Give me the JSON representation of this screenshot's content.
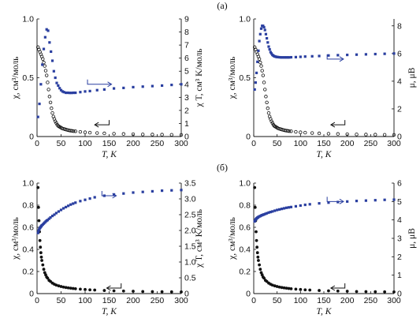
{
  "panel_labels": [
    "(а)",
    "(б)"
  ],
  "chart_data": [
    {
      "type": "scatter",
      "row": "а",
      "xlabel": "T, K",
      "ylabel_left": "χ, см³/моль",
      "ylabel_right": "χ T, см³ K/моль",
      "xlim": [
        0,
        300
      ],
      "ylim_left": [
        0,
        1.0
      ],
      "ylim_right": [
        0,
        9
      ],
      "x_ticks": [
        "0",
        "50",
        "100",
        "150",
        "200",
        "250",
        "300"
      ],
      "y_left_ticks": [
        "0",
        "0.5",
        "1.0"
      ],
      "y_right_ticks": [
        "0",
        "1",
        "2",
        "3",
        "4",
        "5",
        "6",
        "7",
        "8",
        "9"
      ],
      "colors": {
        "open": "#111111",
        "blue": "#2a3fa0"
      },
      "series": [
        {
          "axis": "left",
          "marker": "open-circle",
          "arrow": "left",
          "x": [
            2,
            4,
            6,
            8,
            10,
            12,
            14,
            16,
            18,
            20,
            22,
            24,
            26,
            28,
            30,
            32,
            34,
            36,
            38,
            40,
            42,
            44,
            46,
            48,
            50,
            52,
            55,
            58,
            61,
            64,
            67,
            70,
            73,
            76,
            80,
            90,
            100,
            110,
            125,
            140,
            160,
            180,
            200,
            220,
            240,
            260,
            280,
            300
          ],
          "y": [
            0.76,
            0.74,
            0.72,
            0.7,
            0.68,
            0.66,
            0.63,
            0.6,
            0.56,
            0.52,
            0.46,
            0.4,
            0.34,
            0.29,
            0.24,
            0.2,
            0.17,
            0.15,
            0.13,
            0.115,
            0.1,
            0.09,
            0.085,
            0.08,
            0.075,
            0.07,
            0.066,
            0.062,
            0.058,
            0.055,
            0.052,
            0.05,
            0.048,
            0.046,
            0.045,
            0.04,
            0.036,
            0.033,
            0.03,
            0.027,
            0.024,
            0.022,
            0.02,
            0.018,
            0.017,
            0.016,
            0.015,
            0.014
          ]
        },
        {
          "axis": "right",
          "marker": "filled-square",
          "arrow": "right",
          "x": [
            2,
            5,
            8,
            11,
            14,
            17,
            20,
            23,
            26,
            29,
            32,
            35,
            38,
            41,
            44,
            47,
            50,
            53,
            56,
            60,
            64,
            68,
            72,
            76,
            80,
            90,
            100,
            110,
            125,
            140,
            160,
            180,
            200,
            220,
            240,
            260,
            280,
            300
          ],
          "y": [
            1.5,
            2.5,
            4.0,
            5.5,
            6.7,
            7.6,
            8.2,
            8.1,
            7.2,
            6.5,
            5.8,
            5.0,
            4.5,
            4.1,
            3.9,
            3.7,
            3.55,
            3.45,
            3.4,
            3.35,
            3.35,
            3.34,
            3.34,
            3.35,
            3.35,
            3.4,
            3.45,
            3.48,
            3.55,
            3.6,
            3.68,
            3.72,
            3.78,
            3.82,
            3.86,
            3.9,
            3.95,
            4.0
          ]
        }
      ]
    },
    {
      "type": "scatter",
      "row": "а",
      "xlabel": "T, K",
      "ylabel_left": "χ, см³/моль",
      "ylabel_right": "μ, μB",
      "xlim": [
        0,
        300
      ],
      "ylim_left": [
        0,
        1.0
      ],
      "ylim_right": [
        0,
        8.5
      ],
      "x_ticks": [
        "0",
        "50",
        "100",
        "150",
        "200",
        "250",
        "300"
      ],
      "y_left_ticks": [
        "0",
        "0.5",
        "1.0"
      ],
      "y_right_ticks": [
        "0",
        "2",
        "4",
        "6",
        "8"
      ],
      "colors": {
        "open": "#111111",
        "blue": "#2a3fa0"
      },
      "series": [
        {
          "axis": "left",
          "marker": "open-circle",
          "arrow": "left",
          "x": [
            2,
            4,
            6,
            8,
            10,
            12,
            14,
            16,
            18,
            20,
            22,
            24,
            26,
            28,
            30,
            32,
            34,
            36,
            38,
            40,
            42,
            44,
            46,
            48,
            50,
            52,
            55,
            58,
            61,
            64,
            67,
            70,
            73,
            76,
            80,
            90,
            100,
            110,
            125,
            140,
            160,
            180,
            200,
            220,
            240,
            260,
            280,
            300
          ],
          "y": [
            0.76,
            0.74,
            0.72,
            0.7,
            0.68,
            0.66,
            0.63,
            0.6,
            0.56,
            0.52,
            0.46,
            0.4,
            0.34,
            0.29,
            0.24,
            0.2,
            0.17,
            0.15,
            0.13,
            0.115,
            0.1,
            0.09,
            0.085,
            0.08,
            0.075,
            0.07,
            0.066,
            0.062,
            0.058,
            0.055,
            0.052,
            0.05,
            0.048,
            0.046,
            0.045,
            0.04,
            0.036,
            0.033,
            0.03,
            0.027,
            0.024,
            0.022,
            0.02,
            0.018,
            0.017,
            0.016,
            0.015,
            0.014
          ]
        },
        {
          "axis": "right",
          "marker": "filled-square",
          "arrow": "right",
          "x": [
            2,
            4,
            6,
            8,
            10,
            12,
            14,
            16,
            18,
            20,
            22,
            24,
            26,
            28,
            30,
            32,
            34,
            36,
            38,
            40,
            42,
            44,
            46,
            48,
            50,
            52,
            55,
            58,
            61,
            64,
            67,
            70,
            73,
            76,
            80,
            90,
            100,
            110,
            125,
            140,
            160,
            180,
            200,
            220,
            240,
            260,
            280,
            300
          ],
          "y": [
            3.4,
            3.9,
            4.6,
            5.4,
            6.2,
            6.9,
            7.4,
            7.8,
            8.0,
            8.0,
            7.9,
            7.7,
            7.4,
            7.1,
            6.8,
            6.5,
            6.3,
            6.1,
            6.0,
            5.9,
            5.85,
            5.8,
            5.78,
            5.76,
            5.75,
            5.74,
            5.73,
            5.72,
            5.72,
            5.72,
            5.72,
            5.72,
            5.72,
            5.72,
            5.73,
            5.74,
            5.76,
            5.78,
            5.8,
            5.82,
            5.86,
            5.88,
            5.9,
            5.92,
            5.94,
            5.96,
            5.98,
            6.0
          ]
        }
      ]
    },
    {
      "type": "scatter",
      "row": "б",
      "xlabel": "T, K",
      "ylabel_left": "χ, см³/моль",
      "ylabel_right": "χ T, см³ K/моль",
      "xlim": [
        0,
        300
      ],
      "ylim_left": [
        0,
        1.0
      ],
      "ylim_right": [
        0,
        3.5
      ],
      "x_ticks": [
        "0",
        "50",
        "100",
        "150",
        "200",
        "250",
        "300"
      ],
      "y_left_ticks": [
        "0",
        "0.2",
        "0.4",
        "0.6",
        "0.8",
        "1.0"
      ],
      "y_right_ticks": [
        "0",
        "0.5",
        "1.0",
        "1.5",
        "2.0",
        "2.5",
        "3.0",
        "3.5"
      ],
      "colors": {
        "filled": "#111111",
        "blue": "#2a3fa0"
      },
      "series": [
        {
          "axis": "left",
          "marker": "filled-circle",
          "arrow": "left",
          "x": [
            2,
            3,
            4,
            5,
            6,
            7,
            8,
            9,
            10,
            12,
            14,
            16,
            18,
            20,
            22,
            25,
            28,
            32,
            36,
            40,
            45,
            50,
            55,
            60,
            65,
            70,
            75,
            80,
            90,
            100,
            110,
            120,
            140,
            160,
            180,
            200,
            220,
            240,
            260,
            280,
            300
          ],
          "y": [
            0.96,
            0.78,
            0.66,
            0.56,
            0.48,
            0.42,
            0.37,
            0.33,
            0.3,
            0.26,
            0.22,
            0.19,
            0.17,
            0.15,
            0.14,
            0.12,
            0.11,
            0.095,
            0.085,
            0.077,
            0.07,
            0.064,
            0.059,
            0.055,
            0.052,
            0.049,
            0.046,
            0.044,
            0.04,
            0.037,
            0.034,
            0.032,
            0.028,
            0.025,
            0.023,
            0.021,
            0.019,
            0.018,
            0.017,
            0.016,
            0.015
          ]
        },
        {
          "axis": "right",
          "marker": "filled-square",
          "arrow": "right",
          "x": [
            2,
            3,
            4,
            5,
            6,
            7,
            8,
            9,
            10,
            12,
            14,
            16,
            18,
            20,
            22,
            25,
            28,
            32,
            36,
            40,
            45,
            50,
            55,
            60,
            65,
            70,
            75,
            80,
            90,
            100,
            110,
            120,
            140,
            160,
            180,
            200,
            220,
            240,
            260,
            280,
            300
          ],
          "y": [
            1.92,
            1.98,
            2.02,
            2.05,
            2.08,
            2.1,
            2.12,
            2.14,
            2.16,
            2.19,
            2.22,
            2.25,
            2.28,
            2.31,
            2.33,
            2.37,
            2.41,
            2.46,
            2.5,
            2.55,
            2.6,
            2.65,
            2.7,
            2.74,
            2.78,
            2.82,
            2.85,
            2.88,
            2.93,
            2.97,
            3.01,
            3.05,
            3.1,
            3.14,
            3.17,
            3.2,
            3.22,
            3.24,
            3.26,
            3.27,
            3.28
          ]
        }
      ]
    },
    {
      "type": "scatter",
      "row": "б",
      "xlabel": "T, K",
      "ylabel_left": "χ, см³/моль",
      "ylabel_right": "μ, μB",
      "xlim": [
        0,
        300
      ],
      "ylim_left": [
        0,
        1.0
      ],
      "ylim_right": [
        0,
        6
      ],
      "x_ticks": [
        "0",
        "50",
        "100",
        "150",
        "200",
        "250",
        "300"
      ],
      "y_left_ticks": [
        "0",
        "0.2",
        "0.4",
        "0.6",
        "0.8",
        "1.0"
      ],
      "y_right_ticks": [
        "0",
        "1",
        "2",
        "3",
        "4",
        "5",
        "6"
      ],
      "colors": {
        "filled": "#111111",
        "blue": "#2a3fa0"
      },
      "series": [
        {
          "axis": "left",
          "marker": "filled-circle",
          "arrow": "left",
          "x": [
            2,
            3,
            4,
            5,
            6,
            7,
            8,
            9,
            10,
            12,
            14,
            16,
            18,
            20,
            22,
            25,
            28,
            32,
            36,
            40,
            45,
            50,
            55,
            60,
            65,
            70,
            75,
            80,
            90,
            100,
            110,
            120,
            140,
            160,
            180,
            200,
            220,
            240,
            260,
            280,
            300
          ],
          "y": [
            0.96,
            0.78,
            0.66,
            0.56,
            0.48,
            0.42,
            0.37,
            0.33,
            0.3,
            0.26,
            0.22,
            0.19,
            0.17,
            0.15,
            0.14,
            0.12,
            0.11,
            0.095,
            0.085,
            0.077,
            0.07,
            0.064,
            0.059,
            0.055,
            0.052,
            0.049,
            0.046,
            0.044,
            0.04,
            0.037,
            0.034,
            0.032,
            0.028,
            0.025,
            0.023,
            0.021,
            0.019,
            0.018,
            0.017,
            0.016,
            0.015
          ]
        },
        {
          "axis": "right",
          "marker": "filled-square",
          "arrow": "right",
          "x": [
            2,
            3,
            4,
            5,
            6,
            7,
            8,
            9,
            10,
            12,
            14,
            16,
            18,
            20,
            22,
            25,
            28,
            32,
            36,
            40,
            45,
            50,
            55,
            60,
            65,
            70,
            75,
            80,
            90,
            100,
            110,
            120,
            140,
            160,
            180,
            200,
            220,
            240,
            260,
            280,
            300
          ],
          "y": [
            3.92,
            3.98,
            4.02,
            4.05,
            4.08,
            4.1,
            4.12,
            4.14,
            4.16,
            4.19,
            4.21,
            4.24,
            4.26,
            4.28,
            4.3,
            4.33,
            4.36,
            4.4,
            4.43,
            4.46,
            4.5,
            4.54,
            4.57,
            4.6,
            4.63,
            4.66,
            4.68,
            4.7,
            4.74,
            4.78,
            4.82,
            4.85,
            4.9,
            4.94,
            4.97,
            5.0,
            5.03,
            5.05,
            5.07,
            5.09,
            5.1
          ]
        }
      ]
    }
  ]
}
